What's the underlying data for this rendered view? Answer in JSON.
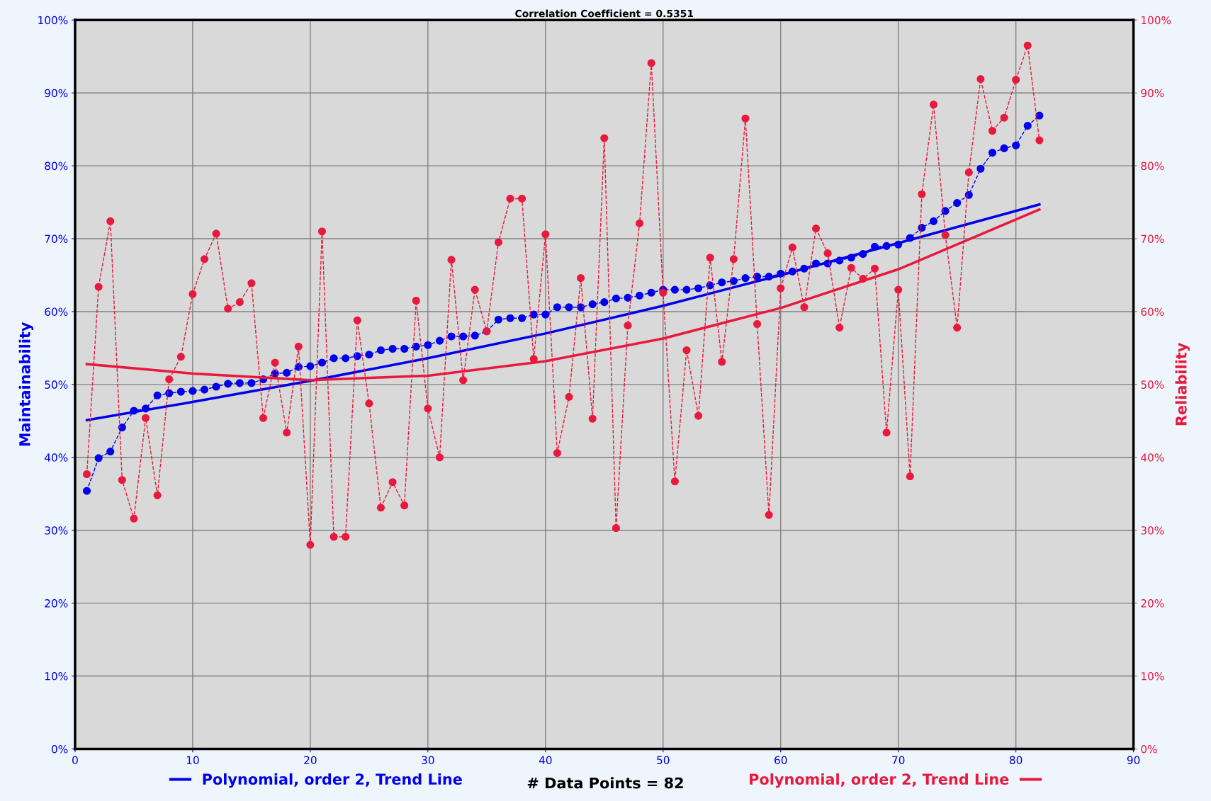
{
  "chart_data": {
    "type": "line",
    "title": "Correlation Coefficient = 0.5351",
    "ylabel": "Maintainability",
    "y2label": "Reliability",
    "annotations": [
      "# Data Points = 82"
    ],
    "x": [
      1,
      2,
      3,
      4,
      5,
      6,
      7,
      8,
      9,
      10,
      11,
      12,
      13,
      14,
      15,
      16,
      17,
      18,
      19,
      20,
      21,
      22,
      23,
      24,
      25,
      26,
      27,
      28,
      29,
      30,
      31,
      32,
      33,
      34,
      35,
      36,
      37,
      38,
      39,
      40,
      41,
      42,
      43,
      44,
      45,
      46,
      47,
      48,
      49,
      50,
      51,
      52,
      53,
      54,
      55,
      56,
      57,
      58,
      59,
      60,
      61,
      62,
      63,
      64,
      65,
      66,
      67,
      68,
      69,
      70,
      71,
      72,
      73,
      74,
      75,
      76,
      77,
      78,
      79,
      80,
      81,
      82
    ],
    "series": [
      {
        "color": "#0000ee",
        "marker": "circle",
        "line_style": "dashed",
        "values": [
          35.4,
          39.9,
          40.8,
          44.1,
          46.4,
          46.7,
          48.5,
          48.8,
          49.0,
          49.1,
          49.3,
          49.7,
          50.1,
          50.2,
          50.2,
          50.7,
          51.5,
          51.6,
          52.4,
          52.5,
          53.0,
          53.6,
          53.6,
          53.9,
          54.1,
          54.7,
          54.9,
          54.9,
          55.2,
          55.4,
          56.0,
          56.6,
          56.6,
          56.7,
          57.3,
          58.9,
          59.1,
          59.1,
          59.6,
          59.6,
          60.6,
          60.6,
          60.6,
          61.0,
          61.3,
          61.8,
          61.9,
          62.2,
          62.6,
          63.0,
          63.0,
          63.0,
          63.2,
          63.6,
          64.0,
          64.2,
          64.6,
          64.8,
          64.8,
          65.2,
          65.5,
          65.9,
          66.6,
          66.6,
          67.0,
          67.4,
          67.9,
          68.9,
          69.0,
          69.2,
          70.1,
          71.5,
          72.4,
          73.8,
          74.9,
          76.0,
          79.6,
          81.8,
          82.4,
          82.8,
          85.5,
          86.9
        ]
      },
      {
        "color": "#e8193c",
        "marker": "circle",
        "line_style": "dashed",
        "axis": "y2",
        "values": [
          37.7,
          63.4,
          72.4,
          36.9,
          31.6,
          45.4,
          34.8,
          50.7,
          53.8,
          62.4,
          67.2,
          70.7,
          60.4,
          61.3,
          63.9,
          45.4,
          53.0,
          43.4,
          55.2,
          28.0,
          71.0,
          29.1,
          29.1,
          58.8,
          47.4,
          33.1,
          36.6,
          33.4,
          61.5,
          46.7,
          40.0,
          67.1,
          50.6,
          63.0,
          57.3,
          69.5,
          75.5,
          75.5,
          53.5,
          70.6,
          40.6,
          48.3,
          64.6,
          45.3,
          83.8,
          30.3,
          58.1,
          72.1,
          94.1,
          62.6,
          36.7,
          54.7,
          45.7,
          67.4,
          53.1,
          67.2,
          86.5,
          58.3,
          32.1,
          63.2,
          68.8,
          60.6,
          71.4,
          68.0,
          57.8,
          66.0,
          64.5,
          65.9,
          43.4,
          63.0,
          37.4,
          76.1,
          88.4,
          70.5,
          57.8,
          79.1,
          91.9,
          84.8,
          86.6,
          91.8,
          96.5,
          83.5
        ]
      },
      {
        "name": "Polynomial, order 2, Trend Line",
        "color": "#0000ee",
        "marker": "none",
        "line_style": "solid",
        "x": [
          1,
          10,
          20,
          30,
          40,
          50,
          60,
          70,
          82
        ],
        "values": [
          45.1,
          47.6,
          50.5,
          53.6,
          57.0,
          60.8,
          65.0,
          69.4,
          74.7
        ]
      },
      {
        "name": "Polynomial, order 2, Trend Line",
        "color": "#e8193c",
        "marker": "none",
        "line_style": "solid",
        "axis": "y2",
        "x": [
          1,
          10,
          20,
          30,
          40,
          50,
          60,
          70,
          82
        ],
        "values": [
          52.8,
          51.5,
          50.6,
          51.2,
          53.2,
          56.3,
          60.5,
          65.8,
          74.0
        ]
      }
    ],
    "xlim": [
      0,
      90
    ],
    "xticks": [
      0,
      10,
      20,
      30,
      40,
      50,
      60,
      70,
      80,
      90
    ],
    "ylim": [
      0,
      100
    ],
    "yticks": [
      {
        "value": 0,
        "label": "0%"
      },
      {
        "value": 10,
        "label": "10%"
      },
      {
        "value": 20,
        "label": "20%"
      },
      {
        "value": 30,
        "label": "30%"
      },
      {
        "value": 40,
        "label": "40%"
      },
      {
        "value": 50,
        "label": "50%"
      },
      {
        "value": 60,
        "label": "60%"
      },
      {
        "value": 70,
        "label": "70%"
      },
      {
        "value": 80,
        "label": "80%"
      },
      {
        "value": 90,
        "label": "90%"
      },
      {
        "value": 100,
        "label": "100%"
      }
    ],
    "y2lim": [
      0,
      100
    ],
    "y2ticks": [
      {
        "value": 0,
        "label": "0%"
      },
      {
        "value": 10,
        "label": "10%"
      },
      {
        "value": 20,
        "label": "20%"
      },
      {
        "value": 30,
        "label": "30%"
      },
      {
        "value": 40,
        "label": "40%"
      },
      {
        "value": 50,
        "label": "50%"
      },
      {
        "value": 60,
        "label": "60%"
      },
      {
        "value": 70,
        "label": "70%"
      },
      {
        "value": 80,
        "label": "80%"
      },
      {
        "value": 90,
        "label": "90%"
      },
      {
        "value": 100,
        "label": "100%"
      }
    ],
    "grid": true,
    "legend": "bottom"
  }
}
